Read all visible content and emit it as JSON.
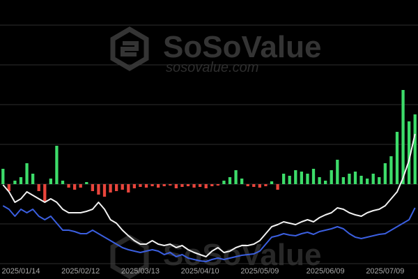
{
  "chart_data": {
    "type": "bar",
    "watermark": {
      "brand": "SoSoValue",
      "url": "sosovalue.com"
    },
    "categories": [
      null,
      null,
      null,
      "2025/01/14",
      null,
      null,
      null,
      null,
      null,
      null,
      null,
      null,
      null,
      "2025/02/12",
      null,
      null,
      null,
      null,
      null,
      null,
      null,
      null,
      null,
      "2025/03/13",
      null,
      null,
      null,
      null,
      null,
      null,
      null,
      null,
      null,
      "2025/04/10",
      null,
      null,
      null,
      null,
      null,
      null,
      null,
      null,
      null,
      "2025/05/09",
      null,
      null,
      null,
      null,
      null,
      null,
      null,
      null,
      null,
      null,
      "2025/06/09",
      null,
      null,
      null,
      null,
      null,
      null,
      null,
      null,
      null,
      "2025/07/09",
      null,
      null,
      null,
      null,
      null
    ],
    "ylim": [
      -114,
      262
    ],
    "yticks": [
      -114,
      -57,
      0,
      57,
      114,
      171,
      228
    ],
    "y2lim": [
      0,
      376
    ],
    "grid": true,
    "series": [
      {
        "type": "bar",
        "color": "#3ddc6a",
        "negative_color": "#e8453c",
        "values": [
          22,
          -10,
          5,
          10,
          30,
          15,
          -10,
          -25,
          8,
          55,
          5,
          -5,
          -8,
          -5,
          3,
          -10,
          -15,
          -18,
          -12,
          -10,
          -8,
          -12,
          -6,
          -4,
          -5,
          -3,
          -5,
          -3,
          -2,
          -6,
          -4,
          -3,
          -5,
          -4,
          -6,
          -3,
          -2,
          5,
          10,
          20,
          8,
          -3,
          -4,
          -5,
          -3,
          4,
          -8,
          15,
          12,
          20,
          18,
          15,
          22,
          10,
          5,
          20,
          35,
          10,
          15,
          18,
          12,
          8,
          15,
          10,
          30,
          40,
          75,
          135,
          90,
          100
        ]
      },
      {
        "type": "line",
        "axis": "y2",
        "color": "#f2f2f2",
        "values": [
          113,
          103,
          88,
          93,
          103,
          98,
          93,
          88,
          93,
          88,
          78,
          73,
          73,
          73,
          75,
          78,
          88,
          78,
          63,
          58,
          48,
          40,
          33,
          28,
          28,
          33,
          28,
          26,
          28,
          23,
          26,
          20,
          16,
          13,
          10,
          18,
          23,
          16,
          18,
          23,
          26,
          26,
          28,
          33,
          43,
          53,
          56,
          60,
          58,
          56,
          60,
          63,
          60,
          66,
          70,
          73,
          80,
          78,
          73,
          70,
          68,
          73,
          76,
          78,
          83,
          93,
          103,
          123,
          148,
          186
        ]
      },
      {
        "type": "line",
        "axis": "y2",
        "color": "#3b5fe0",
        "values": [
          83,
          78,
          68,
          78,
          73,
          78,
          68,
          63,
          68,
          58,
          48,
          48,
          46,
          43,
          43,
          48,
          43,
          38,
          33,
          28,
          23,
          20,
          18,
          16,
          18,
          20,
          18,
          13,
          16,
          10,
          13,
          8,
          6,
          4,
          3,
          6,
          8,
          6,
          8,
          10,
          12,
          13,
          14,
          18,
          28,
          38,
          40,
          43,
          41,
          40,
          43,
          45,
          42,
          46,
          48,
          50,
          53,
          50,
          43,
          38,
          36,
          38,
          40,
          42,
          43,
          48,
          53,
          58,
          63,
          80
        ]
      }
    ]
  }
}
